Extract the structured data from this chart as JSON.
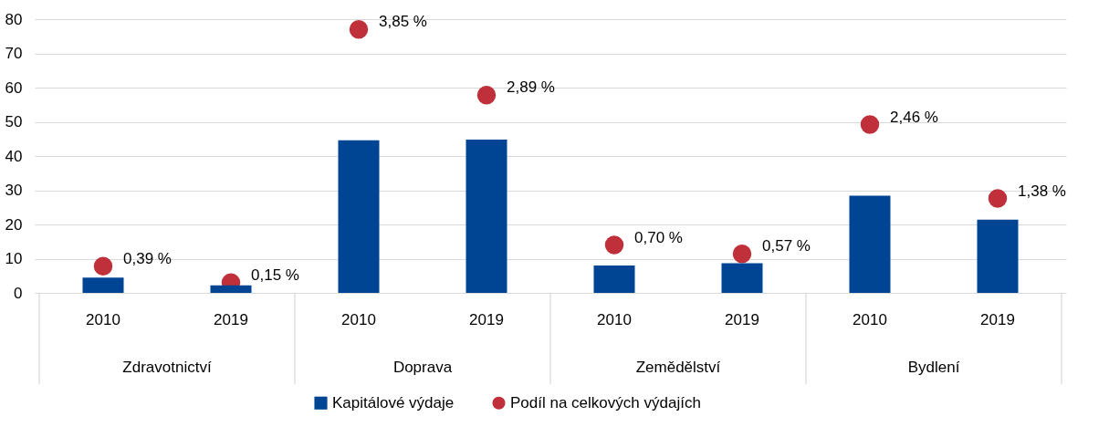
{
  "chart_data": {
    "type": "bar",
    "categories": [
      "2010",
      "2019",
      "2010",
      "2019",
      "2010",
      "2019",
      "2010",
      "2019"
    ],
    "series": [
      {
        "name": "Kapitálové výdaje",
        "color": "#004494",
        "values": [
          4.5,
          2.2,
          44.6,
          44.8,
          8.0,
          8.7,
          28.4,
          21.4
        ]
      },
      {
        "name": "Podíl na celkových výdajích",
        "type": "scatter",
        "axis": "y2",
        "color": "#c0303a",
        "values": [
          0.39,
          0.15,
          3.85,
          2.89,
          0.7,
          0.57,
          2.46,
          1.38
        ],
        "value_labels": [
          "0,39 %",
          "0,15 %",
          "3,85 %",
          "2,89 %",
          "0,70 %",
          "0,57 %",
          "2,46 %",
          "1,38 %"
        ]
      }
    ],
    "annotations": [
      "Zdravotnictví",
      "Doprava",
      "Zemědělství",
      "Bydlení"
    ],
    "ylim": [
      0,
      80
    ],
    "yticks": [
      0,
      10,
      20,
      30,
      40,
      50,
      60,
      70,
      80
    ],
    "y2lim": [
      0,
      4
    ],
    "grid": "y",
    "legend": "bottom",
    "marker": "circle"
  }
}
